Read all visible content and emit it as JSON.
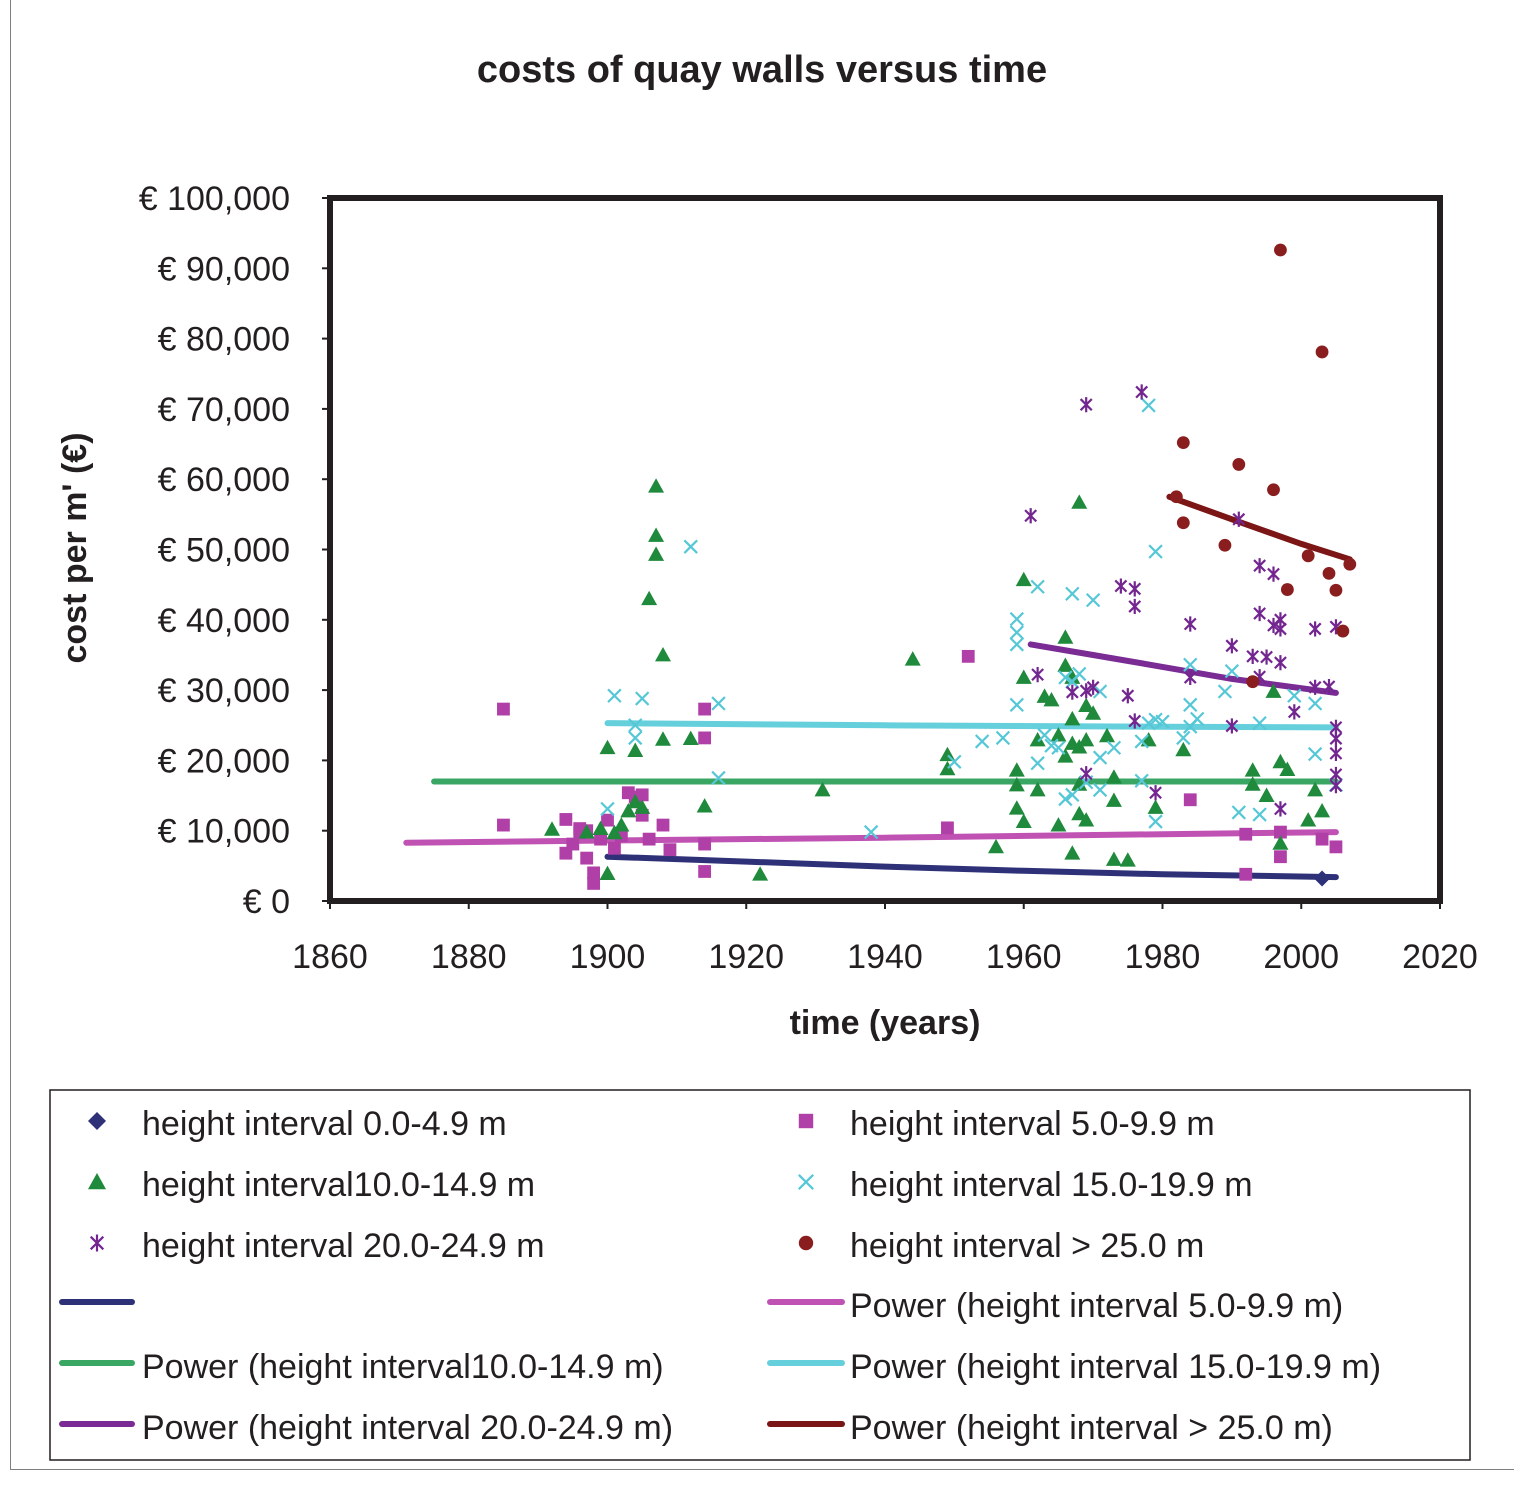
{
  "chart_data": {
    "type": "scatter",
    "title": "costs of quay walls versus time",
    "xlabel": "time (years)",
    "ylabel": "cost per m' (€)",
    "xlim": [
      1860,
      2020
    ],
    "ylim": [
      0,
      100000
    ],
    "x_ticks": [
      "1860",
      "1880",
      "1900",
      "1920",
      "1940",
      "1960",
      "1980",
      "2000",
      "2020"
    ],
    "y_ticks": [
      "€ 0",
      "€ 10,000",
      "€ 20,000",
      "€ 30,000",
      "€ 40,000",
      "€ 50,000",
      "€ 60,000",
      "€ 70,000",
      "€ 80,000",
      "€ 90,000",
      "€ 100,000"
    ],
    "grid": false,
    "legend_position": "bottom",
    "series": [
      {
        "name": "height interval 0.0-4.9 m",
        "marker": "diamond",
        "color": "#2e3178",
        "points": [
          [
            2003,
            3200
          ]
        ]
      },
      {
        "name": "height interval 5.0-9.9 m",
        "marker": "square",
        "color": "#b040a8",
        "points": [
          [
            1885,
            27300
          ],
          [
            1885,
            10800
          ],
          [
            1894,
            11600
          ],
          [
            1894,
            6800
          ],
          [
            1895,
            8100
          ],
          [
            1896,
            9700
          ],
          [
            1896,
            10300
          ],
          [
            1897,
            6100
          ],
          [
            1897,
            10000
          ],
          [
            1898,
            2500
          ],
          [
            1898,
            4000
          ],
          [
            1899,
            8800
          ],
          [
            1900,
            11500
          ],
          [
            1901,
            7500
          ],
          [
            1902,
            9300
          ],
          [
            1903,
            15400
          ],
          [
            1904,
            14800
          ],
          [
            1905,
            15100
          ],
          [
            1905,
            12200
          ],
          [
            1906,
            8800
          ],
          [
            1908,
            10800
          ],
          [
            1909,
            7300
          ],
          [
            1914,
            27300
          ],
          [
            1914,
            23200
          ],
          [
            1914,
            4200
          ],
          [
            1914,
            8100
          ],
          [
            1949,
            10400
          ],
          [
            1952,
            34800
          ],
          [
            1984,
            14400
          ],
          [
            1992,
            9500
          ],
          [
            1992,
            3800
          ],
          [
            1997,
            9800
          ],
          [
            1997,
            6300
          ],
          [
            2003,
            8800
          ],
          [
            2005,
            7700
          ]
        ]
      },
      {
        "name": "height interval10.0-14.9 m",
        "marker": "triangle",
        "color": "#1f8a3c",
        "points": [
          [
            1892,
            10200
          ],
          [
            1897,
            9800
          ],
          [
            1899,
            10300
          ],
          [
            1900,
            21800
          ],
          [
            1900,
            3900
          ],
          [
            1901,
            9700
          ],
          [
            1902,
            10800
          ],
          [
            1903,
            12800
          ],
          [
            1904,
            21400
          ],
          [
            1904,
            14100
          ],
          [
            1905,
            13300
          ],
          [
            1906,
            43000
          ],
          [
            1907,
            59000
          ],
          [
            1907,
            52000
          ],
          [
            1907,
            49300
          ],
          [
            1908,
            35000
          ],
          [
            1908,
            23000
          ],
          [
            1912,
            23100
          ],
          [
            1914,
            13500
          ],
          [
            1922,
            3800
          ],
          [
            1931,
            15800
          ],
          [
            1944,
            34400
          ],
          [
            1949,
            20800
          ],
          [
            1949,
            18800
          ],
          [
            1956,
            7700
          ],
          [
            1959,
            18600
          ],
          [
            1959,
            16500
          ],
          [
            1959,
            13200
          ],
          [
            1960,
            45700
          ],
          [
            1960,
            11300
          ],
          [
            1960,
            31800
          ],
          [
            1962,
            15800
          ],
          [
            1962,
            22900
          ],
          [
            1963,
            29100
          ],
          [
            1964,
            28600
          ],
          [
            1965,
            23600
          ],
          [
            1965,
            10800
          ],
          [
            1966,
            37500
          ],
          [
            1966,
            33500
          ],
          [
            1966,
            20600
          ],
          [
            1967,
            22400
          ],
          [
            1967,
            25900
          ],
          [
            1967,
            6800
          ],
          [
            1967,
            31800
          ],
          [
            1968,
            56700
          ],
          [
            1968,
            21900
          ],
          [
            1968,
            16600
          ],
          [
            1968,
            12400
          ],
          [
            1969,
            27800
          ],
          [
            1969,
            22900
          ],
          [
            1969,
            11500
          ],
          [
            1970,
            26700
          ],
          [
            1972,
            23500
          ],
          [
            1973,
            17600
          ],
          [
            1973,
            14300
          ],
          [
            1973,
            5900
          ],
          [
            1975,
            5800
          ],
          [
            1978,
            22900
          ],
          [
            1979,
            13300
          ],
          [
            1983,
            21500
          ],
          [
            1993,
            18600
          ],
          [
            1993,
            16600
          ],
          [
            1995,
            15000
          ],
          [
            1996,
            29800
          ],
          [
            1997,
            19800
          ],
          [
            1997,
            8200
          ],
          [
            1998,
            18700
          ],
          [
            2001,
            11500
          ],
          [
            2002,
            15800
          ],
          [
            2003,
            12800
          ]
        ]
      },
      {
        "name": "height interval 15.0-19.9 m",
        "marker": "x",
        "color": "#56c7d6",
        "points": [
          [
            1900,
            13100
          ],
          [
            1901,
            29200
          ],
          [
            1904,
            25000
          ],
          [
            1904,
            23200
          ],
          [
            1905,
            28800
          ],
          [
            1912,
            50400
          ],
          [
            1916,
            28100
          ],
          [
            1916,
            17500
          ],
          [
            1938,
            9800
          ],
          [
            1950,
            19800
          ],
          [
            1954,
            22700
          ],
          [
            1957,
            23200
          ],
          [
            1959,
            40100
          ],
          [
            1959,
            38200
          ],
          [
            1959,
            36500
          ],
          [
            1959,
            27900
          ],
          [
            1962,
            44700
          ],
          [
            1962,
            19600
          ],
          [
            1963,
            23600
          ],
          [
            1964,
            22100
          ],
          [
            1965,
            21800
          ],
          [
            1966,
            14500
          ],
          [
            1966,
            31800
          ],
          [
            1967,
            43700
          ],
          [
            1967,
            31200
          ],
          [
            1967,
            15100
          ],
          [
            1968,
            32300
          ],
          [
            1969,
            16900
          ],
          [
            1970,
            42800
          ],
          [
            1971,
            15800
          ],
          [
            1971,
            29800
          ],
          [
            1971,
            20400
          ],
          [
            1973,
            21800
          ],
          [
            1977,
            22700
          ],
          [
            1977,
            17100
          ],
          [
            1978,
            70500
          ],
          [
            1978,
            25300
          ],
          [
            1979,
            49700
          ],
          [
            1979,
            25800
          ],
          [
            1979,
            11300
          ],
          [
            1980,
            25500
          ],
          [
            1983,
            23200
          ],
          [
            1984,
            33600
          ],
          [
            1984,
            27900
          ],
          [
            1984,
            24800
          ],
          [
            1985,
            25900
          ],
          [
            1989,
            29800
          ],
          [
            1990,
            32700
          ],
          [
            1991,
            12600
          ],
          [
            1994,
            25300
          ],
          [
            1994,
            12300
          ],
          [
            1999,
            29200
          ],
          [
            2002,
            28100
          ],
          [
            2002,
            20900
          ],
          [
            2005,
            16500
          ]
        ]
      },
      {
        "name": "height interval 20.0-24.9 m",
        "marker": "asterisk",
        "color": "#73268f",
        "points": [
          [
            1961,
            54800
          ],
          [
            1962,
            32200
          ],
          [
            1967,
            29700
          ],
          [
            1969,
            70600
          ],
          [
            1969,
            29900
          ],
          [
            1969,
            18100
          ],
          [
            1970,
            30400
          ],
          [
            1974,
            44800
          ],
          [
            1975,
            29200
          ],
          [
            1976,
            44400
          ],
          [
            1976,
            41900
          ],
          [
            1976,
            25600
          ],
          [
            1977,
            72400
          ],
          [
            1979,
            15400
          ],
          [
            1984,
            39400
          ],
          [
            1984,
            31800
          ],
          [
            1990,
            36300
          ],
          [
            1990,
            24900
          ],
          [
            1991,
            54300
          ],
          [
            1993,
            34800
          ],
          [
            1994,
            47700
          ],
          [
            1994,
            40900
          ],
          [
            1994,
            31900
          ],
          [
            1995,
            34700
          ],
          [
            1996,
            46500
          ],
          [
            1996,
            39200
          ],
          [
            1997,
            40000
          ],
          [
            1997,
            38700
          ],
          [
            1997,
            33900
          ],
          [
            1997,
            13100
          ],
          [
            1999,
            26900
          ],
          [
            2002,
            38700
          ],
          [
            2002,
            30400
          ],
          [
            2004,
            30500
          ],
          [
            2005,
            39000
          ],
          [
            2005,
            24700
          ],
          [
            2005,
            23100
          ],
          [
            2005,
            21000
          ],
          [
            2005,
            18000
          ],
          [
            2005,
            16400
          ]
        ]
      },
      {
        "name": "height interval >  25.0 m",
        "marker": "circle",
        "color": "#8a1d1d",
        "points": [
          [
            1982,
            57500
          ],
          [
            1983,
            65200
          ],
          [
            1983,
            53800
          ],
          [
            1989,
            50600
          ],
          [
            1991,
            62100
          ],
          [
            1993,
            31200
          ],
          [
            1996,
            58500
          ],
          [
            1997,
            92600
          ],
          [
            1998,
            44300
          ],
          [
            2001,
            49100
          ],
          [
            2003,
            78100
          ],
          [
            2004,
            46600
          ],
          [
            2005,
            44200
          ],
          [
            2006,
            38400
          ],
          [
            2007,
            47900
          ]
        ]
      }
    ],
    "trendlines": [
      {
        "name": "",
        "type": "power",
        "color": "#2e3178",
        "points": [
          [
            1900,
            6300
          ],
          [
            1920,
            5600
          ],
          [
            1940,
            4900
          ],
          [
            1960,
            4300
          ],
          [
            1980,
            3800
          ],
          [
            2005,
            3400
          ]
        ]
      },
      {
        "name": "Power (height interval 5.0-9.9 m)",
        "type": "power",
        "color": "#c052b4",
        "points": [
          [
            1871,
            8300
          ],
          [
            1900,
            8600
          ],
          [
            1940,
            9000
          ],
          [
            1980,
            9500
          ],
          [
            2005,
            9800
          ]
        ]
      },
      {
        "name": "Power (height interval10.0-14.9 m)",
        "type": "power",
        "color": "#3aa663",
        "points": [
          [
            1875,
            17000
          ],
          [
            1940,
            17000
          ],
          [
            2005,
            17000
          ]
        ]
      },
      {
        "name": "Power (height interval 15.0-19.9 m)",
        "type": "power",
        "color": "#65cfdc",
        "points": [
          [
            1900,
            25300
          ],
          [
            1940,
            25000
          ],
          [
            1980,
            24800
          ],
          [
            2005,
            24700
          ]
        ]
      },
      {
        "name": "Power (height interval 20.0-24.9 m)",
        "type": "power",
        "color": "#7a2b94",
        "points": [
          [
            1961,
            36500
          ],
          [
            1970,
            35000
          ],
          [
            1980,
            33300
          ],
          [
            1990,
            31600
          ],
          [
            2005,
            29600
          ]
        ]
      },
      {
        "name": "Power (height interval >  25.0 m)",
        "type": "power",
        "color": "#7c1515",
        "points": [
          [
            1981,
            57500
          ],
          [
            1990,
            54300
          ],
          [
            2000,
            50800
          ],
          [
            2007,
            48600
          ]
        ]
      }
    ]
  }
}
